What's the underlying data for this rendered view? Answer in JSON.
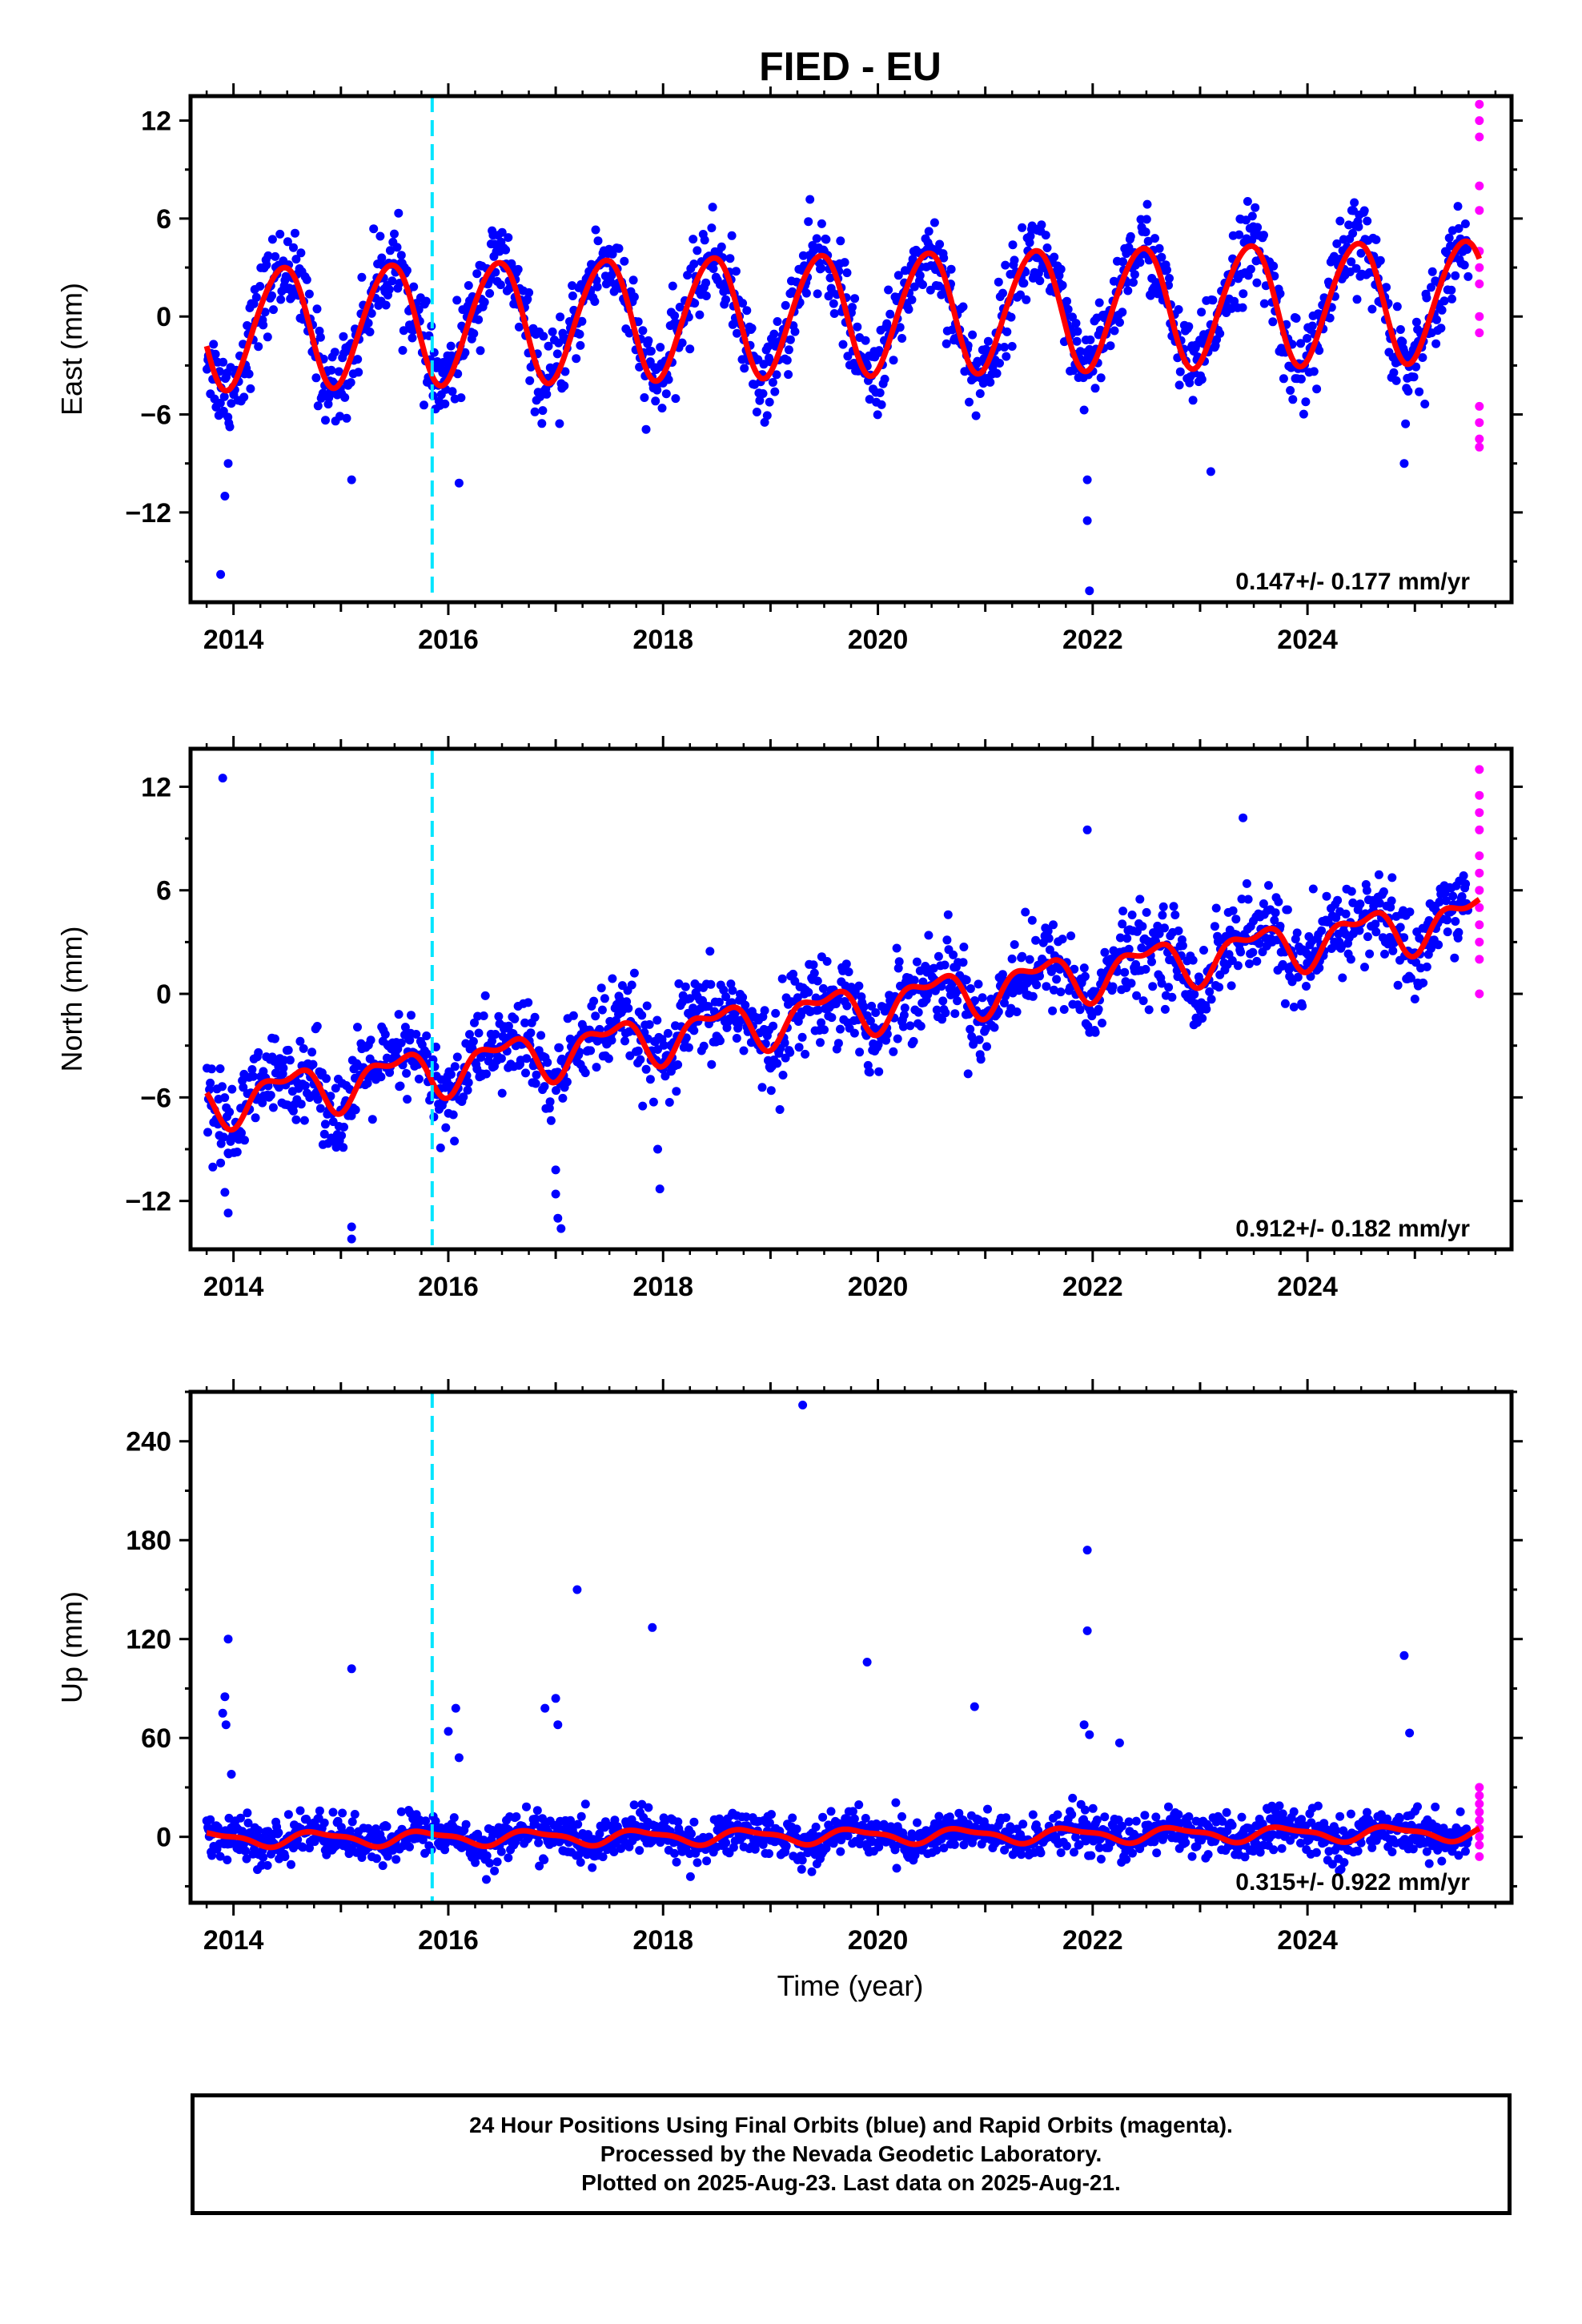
{
  "title": "FIED - EU",
  "xlabel": "Time (year)",
  "footer": {
    "line1": "24 Hour Positions Using Final Orbits (blue) and Rapid Orbits (magenta).",
    "line2": "Processed by the Nevada Geodetic Laboratory.",
    "line3": "Plotted on 2025-Aug-23. Last data on 2025-Aug-21."
  },
  "colors": {
    "final": "#0000ff",
    "rapid": "#ff00ff",
    "model": "#ff0000",
    "event": "#00e5ff"
  },
  "chart_data": [
    {
      "type": "scatter",
      "component": "east",
      "ylabel": "East (mm)",
      "xlim": [
        2013.6,
        2025.9
      ],
      "ylim": [
        -17.5,
        13.5
      ],
      "xticks": [
        "2014",
        "2016",
        "2018",
        "2020",
        "2022",
        "2024"
      ],
      "yticks": [
        "12",
        "6",
        "0",
        "−6",
        "−12"
      ],
      "ytick_values": [
        12,
        6,
        0,
        -6,
        -12
      ],
      "event_lines": [
        2015.85
      ],
      "trend_mm_per_yr": 0.147,
      "annual_amplitude_mm": 3.7,
      "data_start": 2013.75,
      "data_end": 2025.6,
      "rapid_start": 2025.5,
      "rate_text": "0.147+/- 0.177 mm/yr",
      "series": [
        {
          "name": "Final Orbits (blue)",
          "style": "points"
        },
        {
          "name": "Rapid Orbits (magenta)",
          "style": "points"
        },
        {
          "style": "line"
        }
      ],
      "outliers": [
        [
          2013.88,
          -15.8
        ],
        [
          2013.92,
          -11
        ],
        [
          2013.95,
          -9
        ],
        [
          2015.1,
          -10
        ],
        [
          2016.1,
          -10.2
        ],
        [
          2021.95,
          -10
        ],
        [
          2021.95,
          -12.5
        ],
        [
          2021.97,
          -16.8
        ],
        [
          2023.1,
          -9.5
        ],
        [
          2024.9,
          -9
        ]
      ],
      "rapid_points": [
        [
          2025.6,
          13
        ],
        [
          2025.6,
          12
        ],
        [
          2025.6,
          11
        ],
        [
          2025.6,
          8
        ],
        [
          2025.6,
          6.5
        ],
        [
          2025.6,
          4
        ],
        [
          2025.6,
          3
        ],
        [
          2025.6,
          2
        ],
        [
          2025.6,
          0
        ],
        [
          2025.6,
          -1
        ],
        [
          2025.6,
          -5.5
        ],
        [
          2025.6,
          -6.5
        ],
        [
          2025.6,
          -7.5
        ],
        [
          2025.6,
          -8
        ]
      ]
    },
    {
      "type": "scatter",
      "component": "north",
      "ylabel": "North (mm)",
      "xlim": [
        2013.6,
        2025.9
      ],
      "ylim": [
        -14.8,
        14.2
      ],
      "xticks": [
        "2014",
        "2016",
        "2018",
        "2020",
        "2022",
        "2024"
      ],
      "yticks": [
        "12",
        "6",
        "0",
        "−6",
        "−12"
      ],
      "ytick_values": [
        12,
        6,
        0,
        -6,
        -12
      ],
      "event_lines": [
        2015.85
      ],
      "trend_mm_per_yr": 0.912,
      "annual_amplitude_mm": 1.2,
      "data_start": 2013.75,
      "data_end": 2025.6,
      "rapid_start": 2025.5,
      "rate_text": "0.912+/- 0.182 mm/yr",
      "series": [
        {
          "name": "Final Orbits (blue)",
          "style": "points"
        },
        {
          "name": "Rapid Orbits (magenta)",
          "style": "points"
        },
        {
          "style": "line"
        }
      ],
      "outliers": [
        [
          2013.9,
          12.5
        ],
        [
          2013.88,
          -9.8
        ],
        [
          2013.92,
          -11.5
        ],
        [
          2013.95,
          -12.7
        ],
        [
          2015.1,
          -13.5
        ],
        [
          2015.1,
          -14.2
        ],
        [
          2017.0,
          -10.2
        ],
        [
          2017.0,
          -11.6
        ],
        [
          2017.02,
          -13
        ],
        [
          2017.05,
          -13.6
        ],
        [
          2017.95,
          -9
        ],
        [
          2017.97,
          -11.3
        ],
        [
          2021.95,
          9.5
        ],
        [
          2023.4,
          10.2
        ],
        [
          2025.0,
          -0.3
        ]
      ],
      "rapid_points": [
        [
          2025.6,
          13
        ],
        [
          2025.6,
          11.5
        ],
        [
          2025.6,
          10.5
        ],
        [
          2025.6,
          9.5
        ],
        [
          2025.6,
          8
        ],
        [
          2025.6,
          7
        ],
        [
          2025.6,
          6
        ],
        [
          2025.6,
          5
        ],
        [
          2025.6,
          4
        ],
        [
          2025.6,
          3
        ],
        [
          2025.6,
          2
        ],
        [
          2025.6,
          0
        ]
      ]
    },
    {
      "type": "scatter",
      "component": "up",
      "ylabel": "Up (mm)",
      "xlim": [
        2013.6,
        2025.9
      ],
      "ylim": [
        -40,
        270
      ],
      "xticks": [
        "2014",
        "2016",
        "2018",
        "2020",
        "2022",
        "2024"
      ],
      "yticks": [
        "240",
        "180",
        "120",
        "60",
        "0"
      ],
      "ytick_values": [
        240,
        180,
        120,
        60,
        0
      ],
      "event_lines": [
        2015.85
      ],
      "trend_mm_per_yr": 0.315,
      "annual_amplitude_mm": 4,
      "data_start": 2013.75,
      "data_end": 2025.6,
      "rapid_start": 2025.5,
      "rate_text": "0.315+/- 0.922 mm/yr",
      "series": [
        {
          "name": "Final Orbits (blue)",
          "style": "points"
        },
        {
          "name": "Rapid Orbits (magenta)",
          "style": "points"
        },
        {
          "style": "line"
        }
      ],
      "outliers": [
        [
          2013.95,
          120
        ],
        [
          2013.92,
          85
        ],
        [
          2013.9,
          75
        ],
        [
          2013.93,
          68
        ],
        [
          2013.98,
          38
        ],
        [
          2015.1,
          102
        ],
        [
          2016.0,
          64
        ],
        [
          2016.07,
          78
        ],
        [
          2016.1,
          48
        ],
        [
          2016.9,
          78
        ],
        [
          2017.0,
          84
        ],
        [
          2017.02,
          68
        ],
        [
          2017.2,
          150
        ],
        [
          2017.9,
          127
        ],
        [
          2019.3,
          262
        ],
        [
          2019.9,
          106
        ],
        [
          2020.9,
          79
        ],
        [
          2021.95,
          174
        ],
        [
          2021.95,
          125
        ],
        [
          2021.92,
          68
        ],
        [
          2021.97,
          62
        ],
        [
          2022.25,
          57
        ],
        [
          2024.9,
          110
        ],
        [
          2024.95,
          63
        ]
      ],
      "rapid_points": [
        [
          2025.6,
          30
        ],
        [
          2025.6,
          25
        ],
        [
          2025.6,
          20
        ],
        [
          2025.6,
          15
        ],
        [
          2025.6,
          10
        ],
        [
          2025.6,
          5
        ],
        [
          2025.6,
          0
        ],
        [
          2025.6,
          -5
        ],
        [
          2025.6,
          -12
        ]
      ]
    }
  ]
}
